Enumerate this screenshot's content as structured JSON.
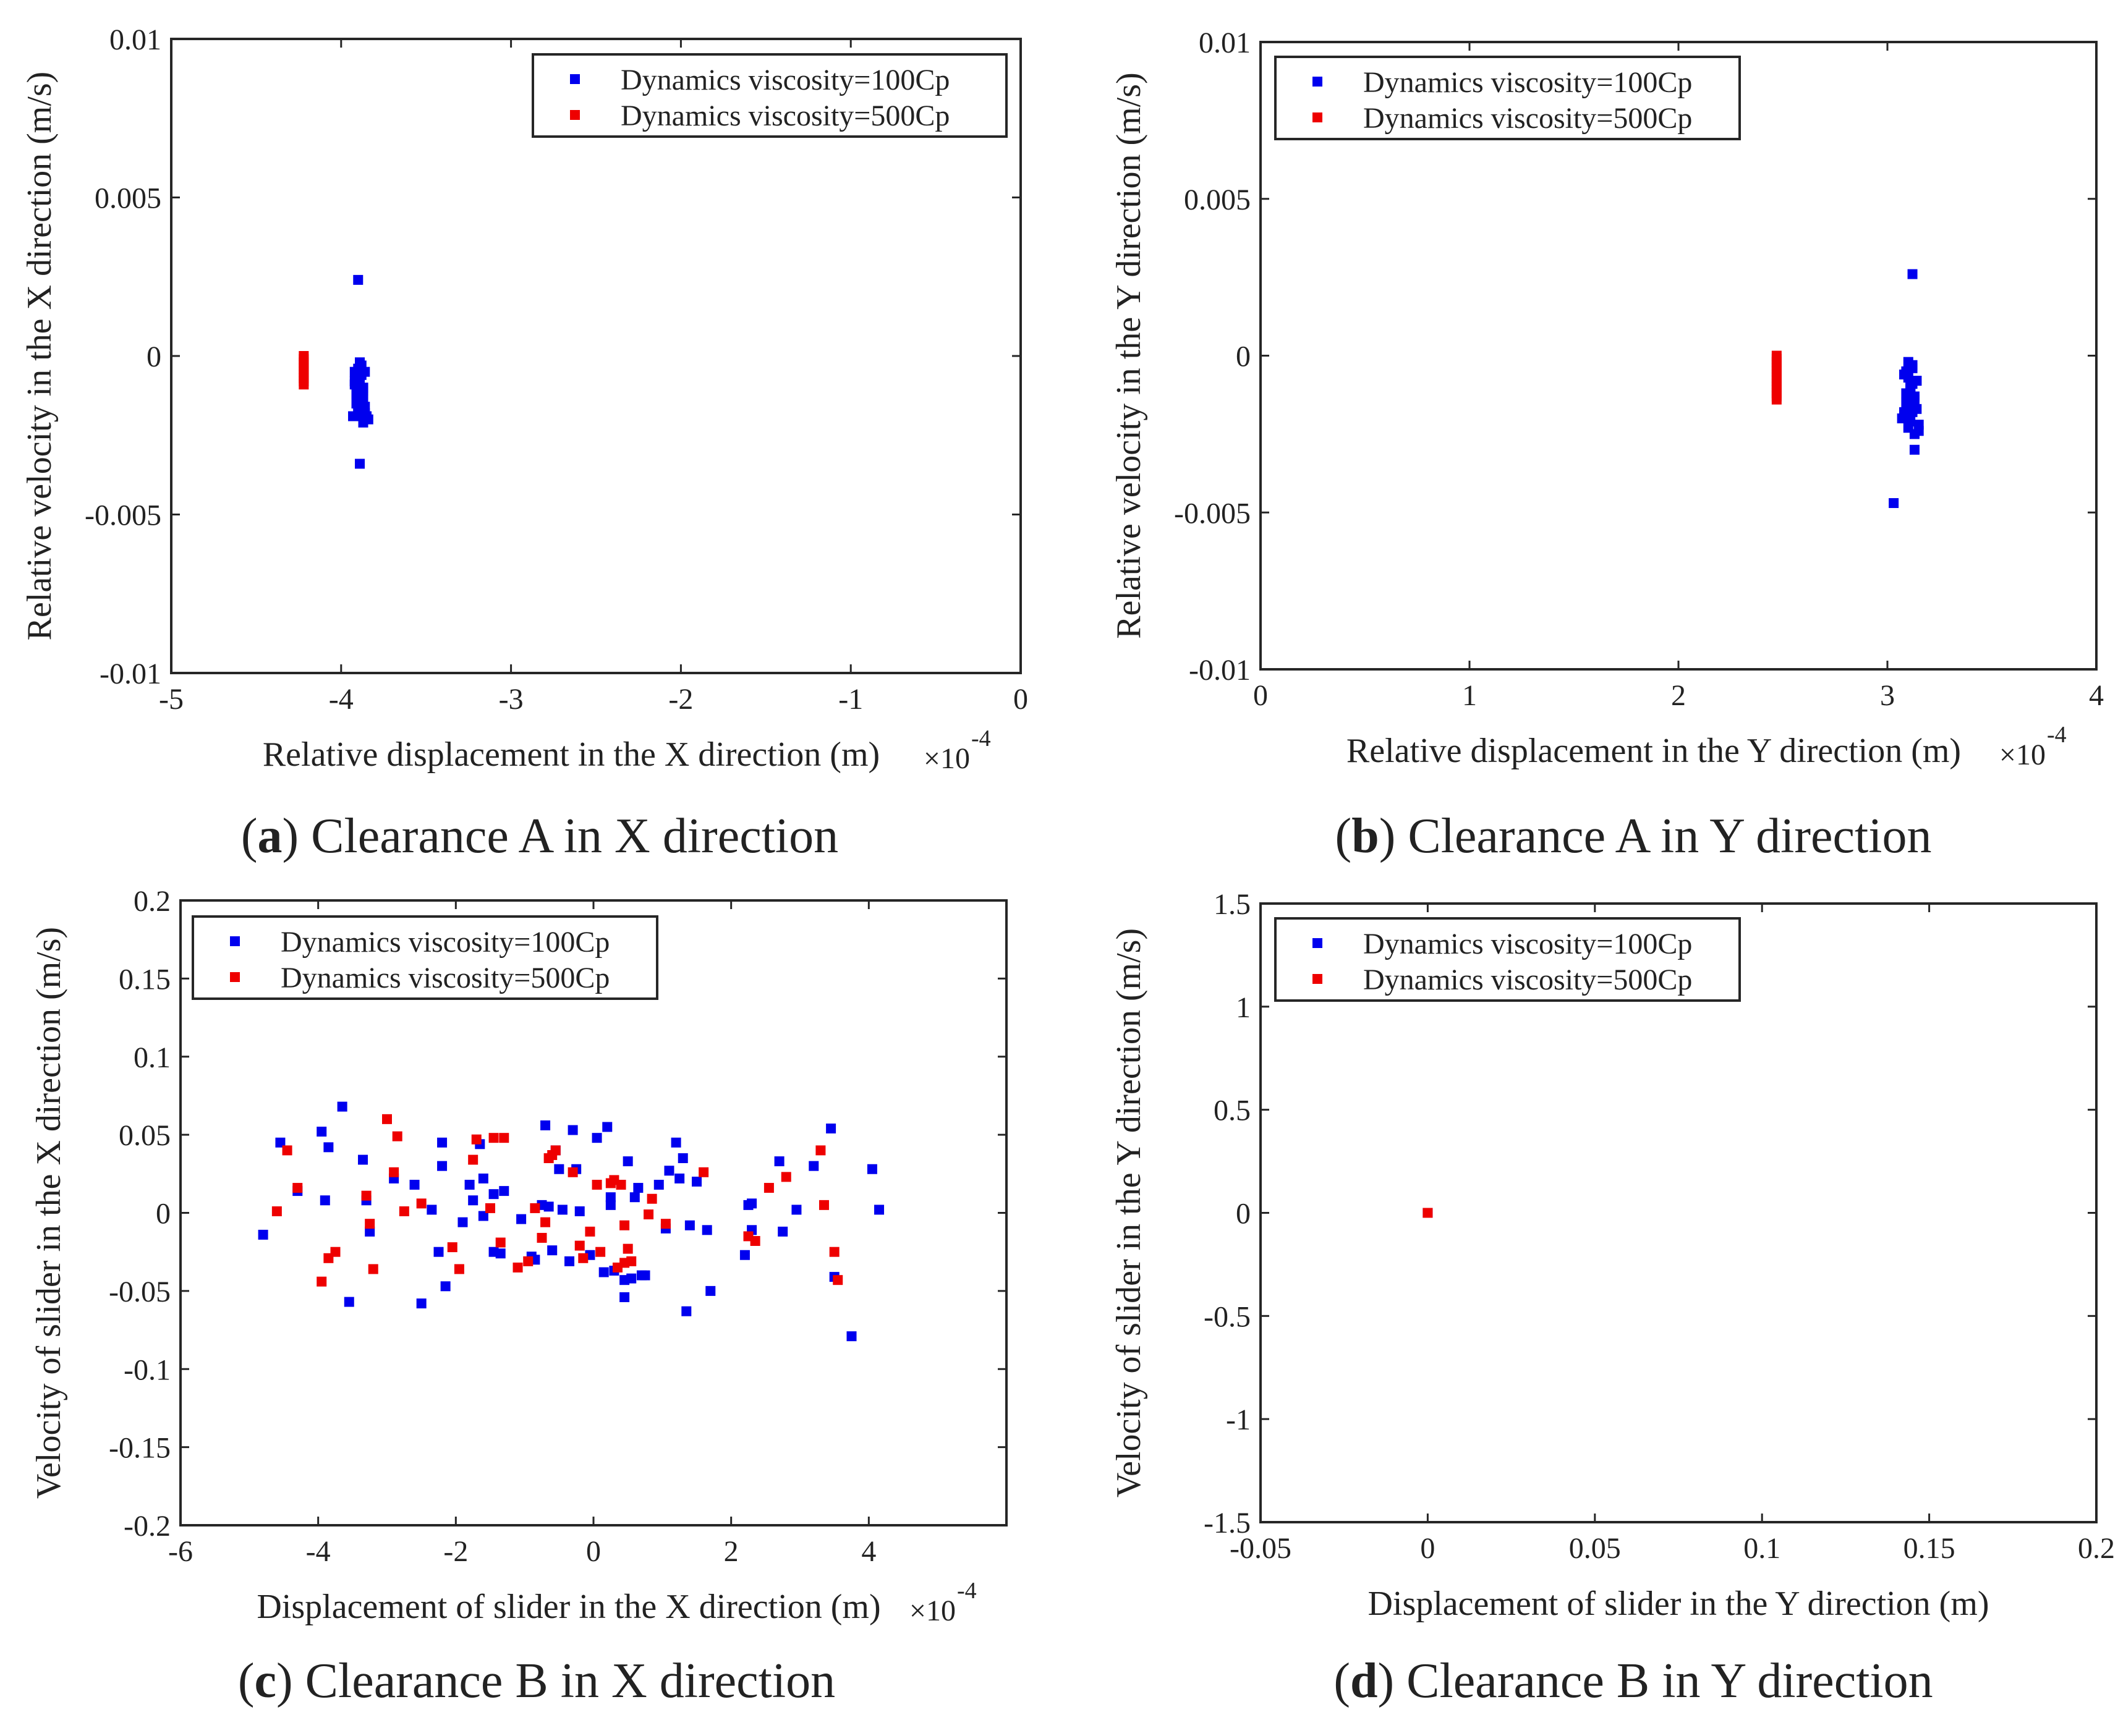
{
  "chart_data": [
    {
      "type": "scatter",
      "id": "a",
      "caption_letter": "a",
      "caption_text": "Clearance A in X direction",
      "xlabel": "Relative displacement in the X direction (m)",
      "ylabel": "Relative velocity in the X direction (m/s)",
      "x_multiplier": "×10",
      "x_exponent": "-4",
      "xlim": [
        -5,
        0
      ],
      "ylim": [
        -0.01,
        0.01
      ],
      "xticks": [
        -5,
        -4,
        -3,
        -2,
        -1,
        0
      ],
      "yticks": [
        -0.01,
        -0.005,
        0,
        0.005,
        0.01
      ],
      "xtick_labels": [
        "-5",
        "-4",
        "-3",
        "-2",
        "-1",
        "0"
      ],
      "ytick_labels": [
        "-0.01",
        "-0.005",
        "0",
        "0.005",
        "0.01"
      ],
      "legend_position": "top-right",
      "series": [
        {
          "name": "Dynamics viscosity=100Cp",
          "color": "#0000ee",
          "x": [
            -3.9,
            -3.88,
            -3.92,
            -3.87,
            -3.91,
            -3.89,
            -3.86,
            -3.9,
            -3.88,
            -3.91,
            -3.87,
            -3.89,
            -3.92,
            -3.85,
            -3.9,
            -3.88,
            -3.86,
            -3.91,
            -3.89,
            -3.87,
            -3.93,
            -3.84,
            -3.9,
            -3.88,
            -3.86,
            -3.92,
            -3.89,
            -3.87,
            -3.91,
            -3.88,
            -3.9,
            -3.89,
            -3.88,
            -3.87
          ],
          "y": [
            -0.0004,
            -0.0006,
            -0.0008,
            -0.001,
            -0.0012,
            -0.0014,
            -0.0016,
            -0.0018,
            -0.0011,
            -0.0007,
            -0.0013,
            -0.0015,
            -0.0009,
            -0.0019,
            -0.0017,
            -0.0003,
            -0.0005,
            -0.0012,
            -0.0008,
            -0.001,
            -0.0019,
            -0.002,
            -0.0014,
            -0.0016,
            -0.0018,
            -0.0005,
            -0.0002,
            -0.0011,
            -0.0015,
            -0.0013,
            0.0024,
            -0.0034,
            -0.0019,
            -0.0021
          ]
        },
        {
          "name": "Dynamics viscosity=500Cp",
          "color": "#ee0000",
          "x": [
            -4.22,
            -4.22,
            -4.22,
            -4.22,
            -4.22,
            -4.22,
            -4.22,
            -4.22,
            -4.22,
            -4.22
          ],
          "y": [
            0.0,
            -0.0001,
            -0.0002,
            -0.0003,
            -0.0004,
            -0.0005,
            -0.0006,
            -0.0007,
            -0.0008,
            -0.0009
          ]
        }
      ]
    },
    {
      "type": "scatter",
      "id": "b",
      "caption_letter": "b",
      "caption_text": "Clearance A in Y direction",
      "xlabel": "Relative displacement in the Y direction (m)",
      "ylabel": "Relative velocity in the Y direction (m/s)",
      "x_multiplier": "×10",
      "x_exponent": "-4",
      "xlim": [
        0,
        4
      ],
      "ylim": [
        -0.01,
        0.01
      ],
      "xticks": [
        0,
        1,
        2,
        3,
        4
      ],
      "yticks": [
        -0.01,
        -0.005,
        0,
        0.005,
        0.01
      ],
      "xtick_labels": [
        "0",
        "1",
        "2",
        "3",
        "4"
      ],
      "ytick_labels": [
        "-0.01",
        "-0.005",
        "0",
        "0.005",
        "0.01"
      ],
      "legend_position": "top-left",
      "series": [
        {
          "name": "Dynamics viscosity=100Cp",
          "color": "#0000ee",
          "x": [
            3.1,
            3.12,
            3.08,
            3.14,
            3.11,
            3.09,
            3.13,
            3.1,
            3.12,
            3.07,
            3.15,
            3.11,
            3.1,
            3.13,
            3.09,
            3.12,
            3.08,
            3.14,
            3.11,
            3.1,
            3.13,
            3.09,
            3.12,
            3.11,
            3.15,
            3.1,
            3.12,
            3.08,
            3.14,
            3.11,
            3.12,
            3.13,
            3.03
          ],
          "y": [
            -0.0002,
            -0.0004,
            -0.0006,
            -0.0008,
            -0.001,
            -0.0012,
            -0.0014,
            -0.0016,
            -0.0018,
            -0.002,
            -0.0022,
            -0.0011,
            -0.0007,
            -0.0013,
            -0.0015,
            -0.0009,
            -0.0019,
            -0.0017,
            -0.0021,
            -0.0023,
            -0.0025,
            -0.0005,
            -0.0003,
            -0.0012,
            -0.0024,
            -0.0014,
            -0.0016,
            -0.0018,
            -0.0008,
            -0.001,
            0.0026,
            -0.003,
            -0.0047
          ]
        },
        {
          "name": "Dynamics viscosity=500Cp",
          "color": "#ee0000",
          "x": [
            2.47,
            2.47,
            2.47,
            2.47,
            2.47,
            2.47,
            2.47,
            2.47,
            2.47,
            2.47,
            2.47,
            2.47,
            2.47,
            2.47,
            2.47
          ],
          "y": [
            0.0,
            -0.0001,
            -0.0002,
            -0.0003,
            -0.0004,
            -0.0005,
            -0.0006,
            -0.0007,
            -0.0008,
            -0.0009,
            -0.001,
            -0.0011,
            -0.0012,
            -0.0013,
            -0.0014
          ]
        }
      ]
    },
    {
      "type": "scatter",
      "id": "c",
      "caption_letter": "c",
      "caption_text": "Clearance B in X direction",
      "xlabel": "Displacement of slider in the X direction (m)",
      "ylabel": "Velocity of slider in the X direction (m/s)",
      "x_multiplier": "×10",
      "x_exponent": "-4",
      "xlim": [
        -6,
        6
      ],
      "ylim": [
        -0.2,
        0.2
      ],
      "xticks": [
        -6,
        -4,
        -2,
        0,
        2,
        4
      ],
      "yticks": [
        -0.2,
        -0.15,
        -0.1,
        -0.05,
        0,
        0.05,
        0.1,
        0.15,
        0.2
      ],
      "xtick_labels": [
        "-6",
        "-4",
        "-2",
        "0",
        "2",
        "4"
      ],
      "ytick_labels": [
        "-0.2",
        "-0.15",
        "-0.1",
        "-0.05",
        "0",
        "0.05",
        "0.1",
        "0.15",
        "0.2"
      ],
      "legend_position": "top-left",
      "series": [
        {
          "name": "Dynamics viscosity=100Cp",
          "color": "#0000ee",
          "x": [
            -4.8,
            -4.55,
            -4.3,
            -3.95,
            -3.9,
            -3.85,
            -3.65,
            -3.55,
            -3.35,
            -3.3,
            -3.25,
            -2.9,
            -2.6,
            -2.5,
            -2.35,
            -2.25,
            -2.2,
            -2.2,
            -2.15,
            -1.9,
            -1.8,
            -1.75,
            -1.65,
            -1.6,
            -1.45,
            -1.45,
            -1.35,
            -1.3,
            -1.05,
            -0.9,
            -0.85,
            -0.7,
            -0.65,
            -0.6,
            -0.55,
            -0.5,
            -0.45,
            -0.35,
            -0.3,
            -0.25,
            -0.2,
            -0.05,
            0.05,
            0.15,
            0.2,
            0.25,
            0.3,
            0.45,
            0.5,
            0.55,
            0.6,
            0.65,
            0.7,
            0.75,
            0.95,
            1.05,
            1.1,
            1.2,
            1.25,
            1.3,
            1.35,
            1.5,
            1.65,
            1.7,
            2.2,
            2.25,
            2.3,
            2.7,
            2.75,
            2.95,
            3.2,
            3.45,
            3.5,
            3.75,
            4.05,
            4.15,
            0.45,
            1.4,
            -1.6,
            -0.75,
            0.25,
            2.3
          ],
          "y": [
            -0.014,
            0.045,
            0.014,
            0.052,
            0.008,
            0.042,
            0.068,
            -0.057,
            0.034,
            0.008,
            -0.012,
            0.022,
            0.018,
            -0.058,
            0.002,
            -0.025,
            0.03,
            0.045,
            -0.047,
            -0.006,
            0.018,
            0.008,
            0.044,
            -0.002,
            0.012,
            -0.025,
            -0.026,
            0.014,
            -0.004,
            -0.028,
            -0.03,
            0.056,
            0.004,
            -0.024,
            0.04,
            0.028,
            0.002,
            -0.031,
            0.053,
            0.028,
            0.001,
            -0.027,
            0.048,
            -0.038,
            0.055,
            0.01,
            -0.037,
            -0.043,
            0.033,
            -0.042,
            0.01,
            0.016,
            -0.04,
            -0.04,
            0.018,
            -0.01,
            0.027,
            0.045,
            0.022,
            0.035,
            -0.063,
            0.02,
            -0.011,
            -0.05,
            -0.027,
            0.005,
            -0.011,
            0.033,
            -0.012,
            0.002,
            0.03,
            0.054,
            -0.041,
            -0.079,
            0.028,
            0.002,
            -0.054,
            -0.008,
            0.022,
            0.005,
            0.005,
            0.006
          ]
        },
        {
          "name": "Dynamics viscosity=500Cp",
          "color": "#ee0000",
          "x": [
            -4.6,
            -4.45,
            -4.3,
            -3.95,
            -3.85,
            -3.75,
            -3.3,
            -3.25,
            -3.2,
            -3.0,
            -2.9,
            -2.85,
            -2.75,
            -2.5,
            -2.05,
            -1.95,
            -1.75,
            -1.7,
            -1.5,
            -1.45,
            -1.35,
            -1.3,
            -1.1,
            -0.95,
            -0.85,
            -0.75,
            -0.7,
            -0.65,
            -0.55,
            -0.3,
            -0.2,
            -0.15,
            0.05,
            0.1,
            0.3,
            0.35,
            0.4,
            0.45,
            0.5,
            0.55,
            0.8,
            0.85,
            1.05,
            1.6,
            2.25,
            2.35,
            2.55,
            2.8,
            3.3,
            3.35,
            3.5,
            3.55,
            0.45,
            -0.05,
            0.25,
            -0.6
          ],
          "y": [
            0.001,
            0.04,
            0.016,
            -0.044,
            -0.029,
            -0.025,
            0.011,
            -0.007,
            -0.036,
            0.06,
            0.026,
            0.049,
            0.001,
            0.006,
            -0.022,
            -0.036,
            0.034,
            0.047,
            0.003,
            0.048,
            -0.019,
            0.048,
            -0.035,
            -0.031,
            0.003,
            -0.016,
            -0.006,
            0.035,
            0.04,
            0.026,
            -0.021,
            -0.029,
            0.018,
            -0.025,
            0.021,
            -0.035,
            0.018,
            -0.008,
            -0.023,
            -0.031,
            -0.001,
            0.009,
            -0.007,
            0.026,
            -0.015,
            -0.018,
            0.016,
            0.023,
            0.04,
            0.005,
            -0.025,
            -0.043,
            -0.032,
            -0.012,
            0.019,
            0.037
          ]
        }
      ]
    },
    {
      "type": "scatter",
      "id": "d",
      "caption_letter": "d",
      "caption_text": "Clearance B in Y direction",
      "xlabel": "Displacement of slider in the Y direction (m)",
      "ylabel": "Velocity of slider in the Y direction (m/s)",
      "x_multiplier": "",
      "x_exponent": "",
      "xlim": [
        -0.05,
        0.2
      ],
      "ylim": [
        -1.5,
        1.5
      ],
      "xticks": [
        -0.05,
        0,
        0.05,
        0.1,
        0.15,
        0.2
      ],
      "yticks": [
        -1.5,
        -1,
        -0.5,
        0,
        0.5,
        1,
        1.5
      ],
      "xtick_labels": [
        "-0.05",
        "0",
        "0.05",
        "0.1",
        "0.15",
        "0.2"
      ],
      "ytick_labels": [
        "-1.5",
        "-1",
        "-0.5",
        "0",
        "0.5",
        "1",
        "1.5"
      ],
      "legend_position": "top-left",
      "series": [
        {
          "name": "Dynamics viscosity=100Cp",
          "color": "#0000ee",
          "x": [
            0.0
          ],
          "y": [
            0.0
          ]
        },
        {
          "name": "Dynamics viscosity=500Cp",
          "color": "#ee0000",
          "x": [
            0.0
          ],
          "y": [
            0.0
          ]
        }
      ]
    }
  ]
}
